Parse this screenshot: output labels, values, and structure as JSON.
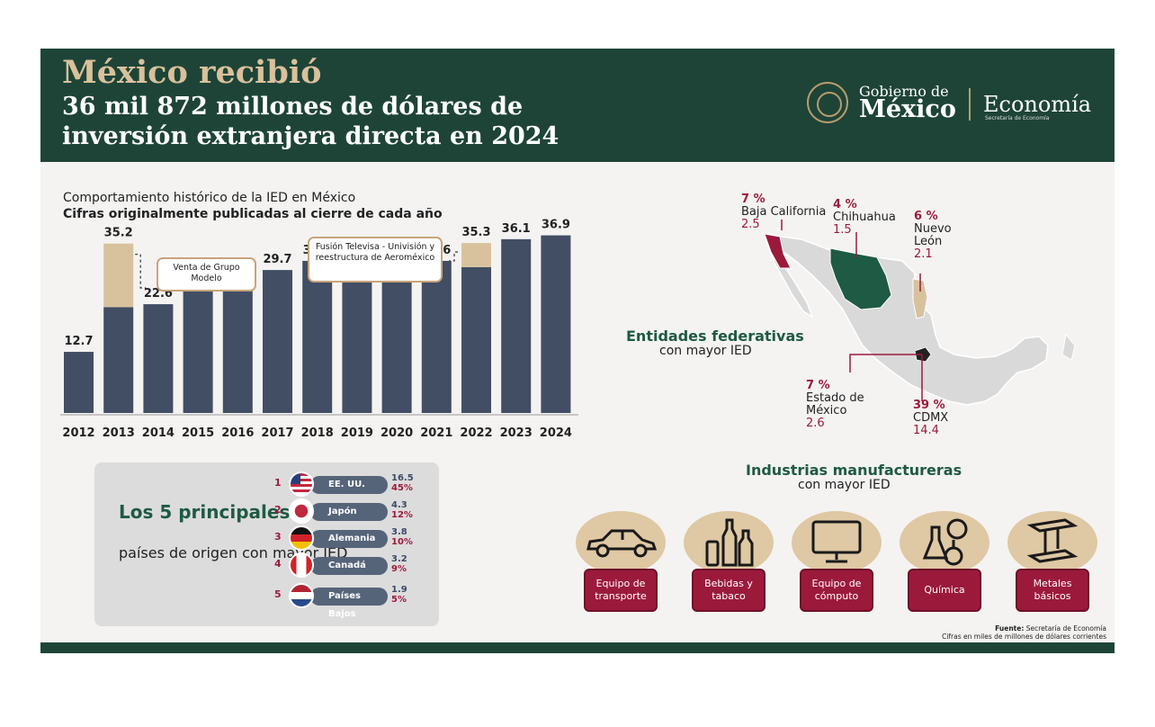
{
  "header": {
    "title_line1": "México recibió",
    "title_line2": "36 mil 872 millones de dólares de inversión extranjera directa en 2024",
    "logo_gobierno_1": "Gobierno de",
    "logo_gobierno_2": "México",
    "logo_economia": "Economía",
    "logo_economia_sub": "Secretaría de Economía"
  },
  "chart_title": "Comportamiento histórico de la IED en México",
  "chart_subtitle": "Cifras originalmente publicadas al cierre de cada año",
  "chart_data": {
    "type": "bar",
    "categories": [
      "2012",
      "2013",
      "2014",
      "2015",
      "2016",
      "2017",
      "2018",
      "2019",
      "2020",
      "2021",
      "2022",
      "2023",
      "2024"
    ],
    "values": [
      12.7,
      35.2,
      22.6,
      28.4,
      26.7,
      29.7,
      31.6,
      32.9,
      29.1,
      31.6,
      35.3,
      36.1,
      36.9
    ],
    "extraordinary_portion": {
      "2013": 13.2,
      "2022": 5.0
    },
    "ylim": [
      0,
      40
    ],
    "grid": false,
    "colors": {
      "bar": "#414e64",
      "extraordinary": "#d8c29e"
    },
    "annotations": [
      {
        "year": "2013",
        "text": "Venta de Grupo Modelo"
      },
      {
        "year": "2022",
        "text": "Fusión Televisa - Univisión y reestructura de Aeroméxico"
      }
    ]
  },
  "countries": {
    "title_bold": "Los 5 principales",
    "title_rest": "países de origen con mayor IED",
    "items": [
      {
        "rank": "1",
        "name": "EE. UU.",
        "value": "16.5",
        "pct": "45%",
        "flag": "us-flag-icon"
      },
      {
        "rank": "2",
        "name": "Japón",
        "value": "4.3",
        "pct": "12%",
        "flag": "japan-flag-icon"
      },
      {
        "rank": "3",
        "name": "Alemania",
        "value": "3.8",
        "pct": "10%",
        "flag": "germany-flag-icon"
      },
      {
        "rank": "4",
        "name": "Canadá",
        "value": "3.2",
        "pct": "9%",
        "flag": "canada-flag-icon"
      },
      {
        "rank": "5",
        "name": "Países Bajos",
        "value": "1.9",
        "pct": "5%",
        "flag": "netherlands-flag-icon"
      }
    ]
  },
  "states": {
    "title_bold": "Entidades federativas",
    "title_rest": "con mayor IED",
    "items": [
      {
        "pct": "7 %",
        "name": "Baja California",
        "value": "2.5"
      },
      {
        "pct": "4 %",
        "name": "Chihuahua",
        "value": "1.5"
      },
      {
        "pct": "6 %",
        "name": "Nuevo León",
        "value": "2.1"
      },
      {
        "pct": "7 %",
        "name": "Estado de México",
        "value": "2.6"
      },
      {
        "pct": "39 %",
        "name": "CDMX",
        "value": "14.4"
      }
    ]
  },
  "industries": {
    "title_bold": "Industrias manufactureras",
    "title_rest": "con mayor IED",
    "items": [
      {
        "label": "Equipo de transporte",
        "icon": "car-icon"
      },
      {
        "label": "Bebidas y tabaco",
        "icon": "bottles-icon"
      },
      {
        "label": "Equipo de cómputo",
        "icon": "monitor-icon"
      },
      {
        "label": "Química",
        "icon": "flask-icon"
      },
      {
        "label": "Metales básicos",
        "icon": "steel-beam-icon"
      }
    ]
  },
  "source_bold": "Fuente:",
  "source_text": "Secretaría de Economía",
  "source_note": "Cifras en miles de millones de dólares corrientes",
  "colors": {
    "dark_green": "#1e4438",
    "guinda": "#9b1a3c",
    "gold": "#d8c29e",
    "bar": "#414e64"
  }
}
